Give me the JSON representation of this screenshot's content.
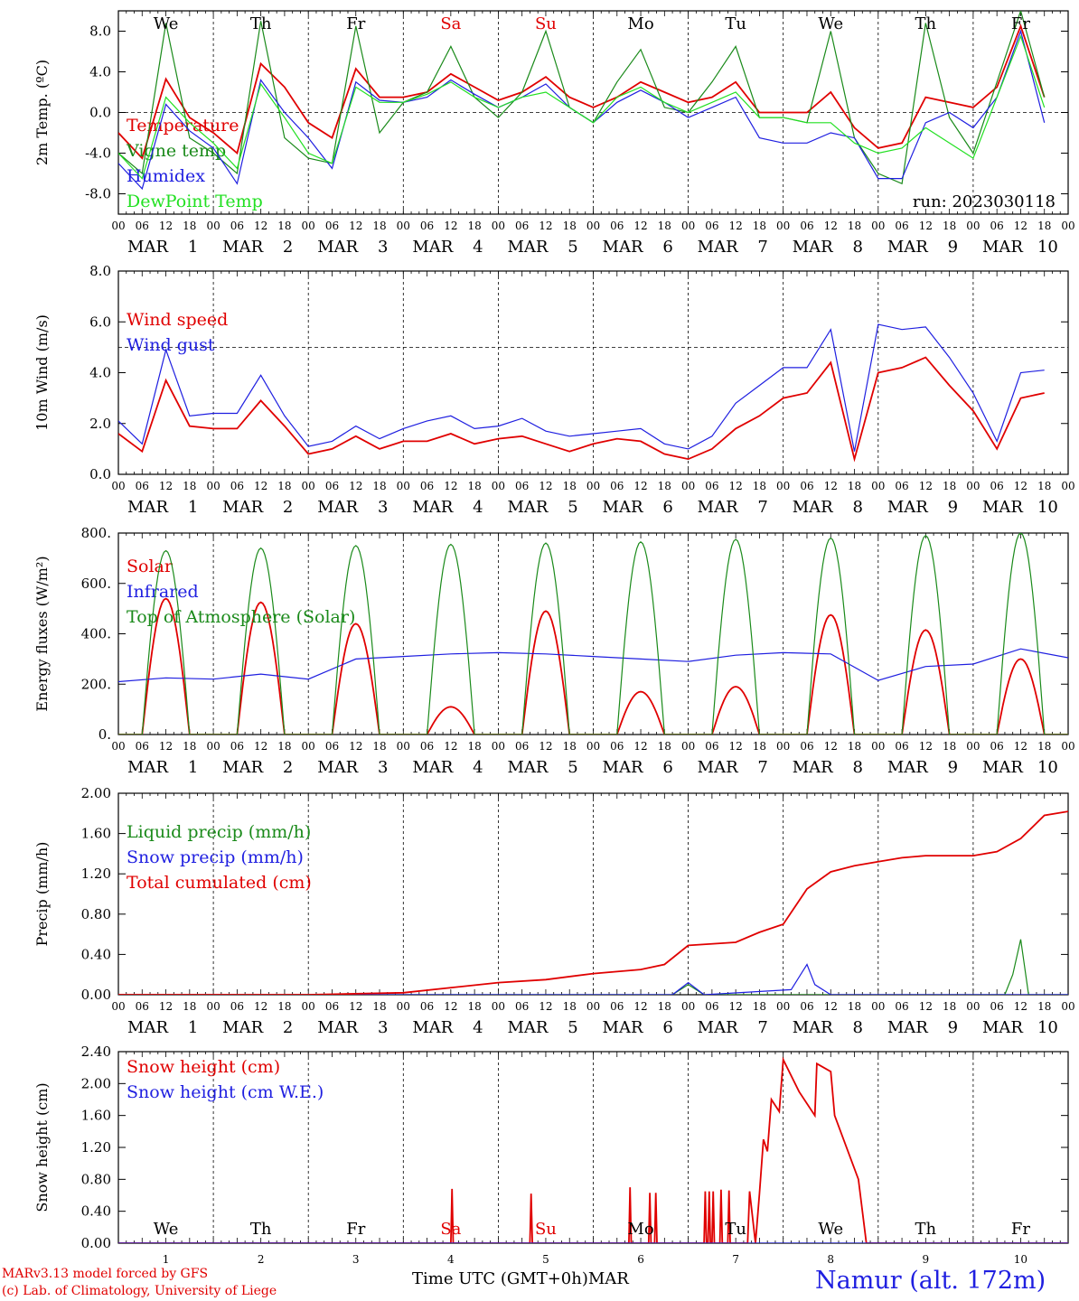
{
  "footer": {
    "model": "MARv3.13 model forced by GFS",
    "credit": "(c) Lab. of Climatology, University of Liege",
    "xaxis_title": "Time UTC (GMT+0h)MAR",
    "station": "Namur (alt. 172m)"
  },
  "colors": {
    "red": "#e00000",
    "blue": "#1f1fe0",
    "green": "#1a8a1a",
    "lightgreen": "#22e022"
  },
  "chart_data": {
    "type": "line",
    "days": [
      {
        "weekday": "We",
        "date": "1",
        "month": "MAR",
        "weekend": false
      },
      {
        "weekday": "Th",
        "date": "2",
        "month": "MAR",
        "weekend": false
      },
      {
        "weekday": "Fr",
        "date": "3",
        "month": "MAR",
        "weekend": false
      },
      {
        "weekday": "Sa",
        "date": "4",
        "month": "MAR",
        "weekend": true
      },
      {
        "weekday": "Su",
        "date": "5",
        "month": "MAR",
        "weekend": true
      },
      {
        "weekday": "Mo",
        "date": "6",
        "month": "MAR",
        "weekend": false
      },
      {
        "weekday": "Tu",
        "date": "7",
        "month": "MAR",
        "weekend": false
      },
      {
        "weekday": "We",
        "date": "8",
        "month": "MAR",
        "weekend": false
      },
      {
        "weekday": "Th",
        "date": "9",
        "month": "MAR",
        "weekend": false
      },
      {
        "weekday": "Fr",
        "date": "10",
        "month": "MAR",
        "weekend": false
      }
    ],
    "hour_ticks": [
      "00",
      "06",
      "12",
      "18"
    ],
    "panels": [
      {
        "ylabel": "2m Temp. (ºC)",
        "ylim": [
          -10,
          10
        ],
        "yticks": [
          "-8.0",
          "-4.0",
          "0.0",
          "4.0",
          "8.0"
        ],
        "yticks_values": [
          -8,
          -4,
          0,
          4,
          8
        ],
        "ref_line": 0,
        "run_label": "run: 2023030118",
        "series": [
          {
            "name": "Temperature",
            "color": "red",
            "x": [
              0,
              6,
              12,
              18,
              24,
              30,
              36,
              42,
              48,
              54,
              60,
              66,
              72,
              78,
              84,
              90,
              96,
              102,
              108,
              114,
              120,
              126,
              132,
              138,
              144,
              150,
              156,
              162,
              168,
              174,
              180,
              186,
              192,
              198,
              204,
              210,
              216,
              222,
              228,
              234
            ],
            "y": [
              -2,
              -4.5,
              3.3,
              -0.5,
              -2,
              -4,
              4.8,
              2.5,
              -1,
              -2.5,
              4.3,
              1.5,
              1.5,
              2,
              3.8,
              2.5,
              1.2,
              2,
              3.5,
              1.5,
              0.5,
              1.5,
              3,
              2,
              1,
              1.5,
              3,
              0,
              0,
              0,
              2,
              -1.5,
              -3.5,
              -3,
              1.5,
              1,
              0.5,
              2.5,
              8.5,
              1.5
            ]
          },
          {
            "name": "Vigne temp",
            "color": "green",
            "x": [
              0,
              6,
              12,
              18,
              24,
              30,
              36,
              42,
              48,
              54,
              60,
              66,
              72,
              78,
              84,
              90,
              96,
              102,
              108,
              114,
              120,
              126,
              132,
              138,
              144,
              150,
              156,
              162,
              168,
              174,
              180,
              186,
              192,
              198,
              204,
              210,
              216,
              222,
              228,
              234
            ],
            "y": [
              -4,
              -6,
              8.8,
              -2.5,
              -4,
              -6,
              9,
              -2.5,
              -4.5,
              -5,
              8.5,
              -2,
              1,
              2,
              6.5,
              1.5,
              -0.5,
              2,
              8,
              0.5,
              -1,
              3,
              6.2,
              0.5,
              0,
              3,
              6.5,
              -0.5,
              -0.5,
              -1,
              8,
              -2.5,
              -6,
              -7,
              8.8,
              -0.5,
              -4,
              3,
              10,
              1.5
            ]
          },
          {
            "name": "Humidex",
            "color": "blue",
            "x": [
              0,
              6,
              12,
              18,
              24,
              30,
              36,
              42,
              48,
              54,
              60,
              66,
              72,
              78,
              84,
              90,
              96,
              102,
              108,
              114,
              120,
              126,
              132,
              138,
              144,
              150,
              156,
              162,
              168,
              174,
              180,
              186,
              192,
              198,
              204,
              210,
              216,
              222,
              228,
              234
            ],
            "y": [
              -5,
              -7.5,
              0.8,
              -1.8,
              -3.5,
              -7,
              3.2,
              0,
              -2.5,
              -5.5,
              3,
              1.2,
              1,
              1.5,
              3.2,
              1.8,
              0.5,
              1.5,
              2.8,
              0.5,
              -1,
              1,
              2.2,
              1,
              -0.5,
              0.5,
              1.5,
              -2.5,
              -3,
              -3,
              -2,
              -2.5,
              -6.5,
              -6.5,
              -1,
              0,
              -1.5,
              1.5,
              8,
              -1
            ]
          },
          {
            "name": "DewPoint Temp",
            "color": "lightgreen",
            "x": [
              0,
              6,
              12,
              18,
              24,
              30,
              36,
              42,
              48,
              54,
              60,
              66,
              72,
              78,
              84,
              90,
              96,
              102,
              108,
              114,
              120,
              126,
              132,
              138,
              144,
              150,
              156,
              162,
              168,
              174,
              180,
              186,
              192,
              198,
              204,
              210,
              216,
              222,
              228,
              234
            ],
            "y": [
              -4,
              -6.5,
              1.5,
              -1,
              -3,
              -5.5,
              2.8,
              -0.5,
              -4,
              -5,
              2.5,
              1,
              1,
              1.8,
              3,
              1.5,
              0.5,
              1.5,
              2,
              0.5,
              -1,
              1.5,
              2.5,
              1,
              0,
              1,
              2,
              -0.5,
              -0.5,
              -1,
              -1,
              -3,
              -4,
              -3.5,
              -1.5,
              -3,
              -4.5,
              1.5,
              7.5,
              0.5
            ]
          }
        ]
      },
      {
        "ylabel": "10m Wind (m/s)",
        "ylim": [
          0,
          8
        ],
        "yticks": [
          "0.0",
          "2.0",
          "4.0",
          "6.0",
          "8.0"
        ],
        "yticks_values": [
          0,
          2,
          4,
          6,
          8
        ],
        "ref_line": 5,
        "series": [
          {
            "name": "Wind speed",
            "color": "red",
            "x": [
              0,
              6,
              12,
              18,
              24,
              30,
              36,
              42,
              48,
              54,
              60,
              66,
              72,
              78,
              84,
              90,
              96,
              102,
              108,
              114,
              120,
              126,
              132,
              138,
              144,
              150,
              156,
              162,
              168,
              174,
              180,
              186,
              192,
              198,
              204,
              210,
              216,
              222,
              228,
              234
            ],
            "y": [
              1.6,
              0.9,
              3.7,
              1.9,
              1.8,
              1.8,
              2.9,
              1.9,
              0.8,
              1,
              1.5,
              1,
              1.3,
              1.3,
              1.6,
              1.2,
              1.4,
              1.5,
              1.2,
              0.9,
              1.2,
              1.4,
              1.3,
              0.8,
              0.6,
              1,
              1.8,
              2.3,
              3,
              3.2,
              4.4,
              0.6,
              4,
              4.2,
              4.6,
              3.5,
              2.5,
              1,
              3,
              3.2
            ]
          },
          {
            "name": "Wind gust",
            "color": "blue",
            "x": [
              0,
              6,
              12,
              18,
              24,
              30,
              36,
              42,
              48,
              54,
              60,
              66,
              72,
              78,
              84,
              90,
              96,
              102,
              108,
              114,
              120,
              126,
              132,
              138,
              144,
              150,
              156,
              162,
              168,
              174,
              180,
              186,
              192,
              198,
              204,
              210,
              216,
              222,
              228,
              234
            ],
            "y": [
              2.1,
              1.2,
              4.9,
              2.3,
              2.4,
              2.4,
              3.9,
              2.3,
              1.1,
              1.3,
              1.9,
              1.4,
              1.8,
              2.1,
              2.3,
              1.8,
              1.9,
              2.2,
              1.7,
              1.5,
              1.6,
              1.7,
              1.8,
              1.2,
              1,
              1.5,
              2.8,
              3.5,
              4.2,
              4.2,
              5.7,
              0.9,
              5.9,
              5.7,
              5.8,
              4.6,
              3.2,
              1.3,
              4,
              4.1
            ]
          }
        ]
      },
      {
        "ylabel": "Energy fluxes (W/m²)",
        "ylim": [
          0,
          800
        ],
        "yticks": [
          "0.",
          "200.",
          "400.",
          "600.",
          "800."
        ],
        "yticks_values": [
          0,
          200,
          400,
          600,
          800
        ],
        "series": [
          {
            "name": "Solar",
            "color": "red",
            "daily_peak": [
              540,
              525,
              440,
              110,
              490,
              170,
              190,
              475,
              415,
              300
            ]
          },
          {
            "name": "Infrared",
            "color": "blue",
            "x": [
              0,
              12,
              24,
              36,
              48,
              60,
              72,
              84,
              96,
              108,
              120,
              132,
              144,
              156,
              168,
              180,
              192,
              204,
              216,
              228,
              240
            ],
            "y": [
              210,
              225,
              220,
              240,
              220,
              300,
              310,
              320,
              325,
              320,
              310,
              300,
              290,
              315,
              325,
              320,
              215,
              270,
              280,
              340,
              305
            ]
          },
          {
            "name": "Top of Atmosphere (Solar)",
            "color": "green",
            "daily_peak": [
              730,
              740,
              750,
              755,
              760,
              765,
              775,
              780,
              790,
              800
            ]
          }
        ]
      },
      {
        "ylabel": "Precip (mm/h)",
        "ylim": [
          0,
          2
        ],
        "yticks": [
          "0.00",
          "0.40",
          "0.80",
          "1.20",
          "1.60",
          "2.00"
        ],
        "yticks_values": [
          0,
          0.4,
          0.8,
          1.2,
          1.6,
          2.0
        ],
        "series": [
          {
            "name": "Liquid precip (mm/h)",
            "color": "green",
            "x": [
              0,
              140,
              144,
              148,
              180,
              224,
              226,
              228,
              230,
              240
            ],
            "y": [
              0,
              0,
              0.1,
              0,
              0,
              0,
              0.2,
              0.55,
              0,
              0
            ]
          },
          {
            "name": "Snow precip (mm/h)",
            "color": "blue",
            "x": [
              0,
              140,
              144,
              148,
              170,
              174,
              176,
              180,
              240
            ],
            "y": [
              0,
              0,
              0.12,
              0,
              0.05,
              0.3,
              0.1,
              0,
              0
            ]
          },
          {
            "name": "Total cumulated (cm)",
            "color": "red",
            "x": [
              0,
              48,
              72,
              96,
              108,
              120,
              132,
              138,
              144,
              156,
              162,
              168,
              174,
              180,
              186,
              192,
              198,
              204,
              216,
              222,
              228,
              234,
              240
            ],
            "y": [
              0,
              0,
              0.02,
              0.12,
              0.15,
              0.21,
              0.25,
              0.3,
              0.49,
              0.52,
              0.62,
              0.7,
              1.05,
              1.22,
              1.28,
              1.32,
              1.36,
              1.38,
              1.38,
              1.42,
              1.55,
              1.78,
              1.82
            ]
          }
        ]
      },
      {
        "ylabel": "Snow height (cm)",
        "ylim": [
          0,
          2.4
        ],
        "yticks": [
          "0.00",
          "0.40",
          "0.80",
          "1.20",
          "1.60",
          "2.00",
          "2.40"
        ],
        "yticks_values": [
          0,
          0.4,
          0.8,
          1.2,
          1.6,
          2.0,
          2.4
        ],
        "series": [
          {
            "name": "Snow height (cm)",
            "color": "red",
            "x": [
              0,
              84,
              84.3,
              84.6,
              104,
              104.3,
              104.6,
              129,
              129.3,
              129.6,
              134,
              134.3,
              134.6,
              135.5,
              135.8,
              136.1,
              148,
              148.3,
              148.6,
              149,
              149.3,
              149.6,
              150,
              150.3,
              150.6,
              152,
              152.3,
              152.6,
              154,
              154.3,
              154.6,
              159,
              159.5,
              161,
              162,
              163,
              164,
              165,
              167,
              168,
              172,
              176,
              176.5,
              180,
              181,
              187,
              189,
              190,
              240
            ],
            "y": [
              0,
              0,
              0.68,
              0,
              0,
              0.62,
              0,
              0,
              0.7,
              0,
              0,
              0.63,
              0,
              0,
              0.63,
              0,
              0,
              0.65,
              0,
              0,
              0.65,
              0,
              0,
              0.65,
              0,
              0,
              0.67,
              0,
              0,
              0.66,
              0,
              0,
              0.65,
              0,
              0.62,
              1.3,
              1.15,
              1.8,
              1.65,
              2.3,
              1.9,
              1.6,
              2.25,
              2.15,
              1.6,
              0.8,
              0,
              0,
              0
            ]
          },
          {
            "name": "Snow height (cm W.E.)",
            "color": "blue",
            "x": [
              0,
              240
            ],
            "y": [
              0,
              0
            ]
          }
        ]
      }
    ]
  }
}
